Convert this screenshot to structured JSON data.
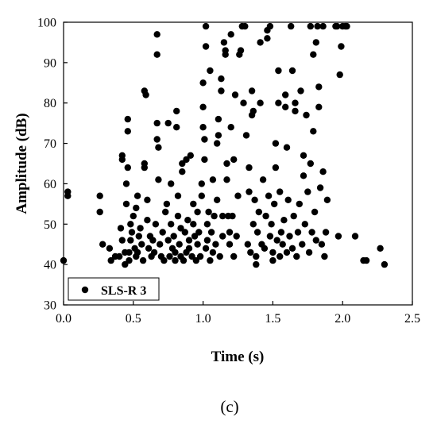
{
  "caption": "(c)",
  "chart_data": {
    "type": "scatter",
    "xlabel": "Time (s)",
    "ylabel": "Amplitude (dB)",
    "xlim": [
      0.0,
      2.5
    ],
    "ylim": [
      30,
      100
    ],
    "xticks": [
      "0.0",
      "0.5",
      "1.0",
      "1.5",
      "2.0",
      "2.5"
    ],
    "yticks": [
      "30",
      "40",
      "50",
      "60",
      "70",
      "80",
      "90",
      "100"
    ],
    "grid": false,
    "legend_position": "bottom-left",
    "marker_color": "#000000",
    "series": [
      {
        "name": "SLS-R 3",
        "points": [
          [
            0.0,
            41
          ],
          [
            0.03,
            57
          ],
          [
            0.03,
            58
          ],
          [
            0.26,
            57
          ],
          [
            0.26,
            53
          ],
          [
            0.28,
            45
          ],
          [
            0.33,
            44
          ],
          [
            0.34,
            41
          ],
          [
            0.37,
            42
          ],
          [
            0.4,
            42
          ],
          [
            0.41,
            49
          ],
          [
            0.42,
            46
          ],
          [
            0.42,
            67
          ],
          [
            0.42,
            66
          ],
          [
            0.44,
            43
          ],
          [
            0.44,
            40
          ],
          [
            0.45,
            55
          ],
          [
            0.45,
            60
          ],
          [
            0.46,
            76
          ],
          [
            0.46,
            73
          ],
          [
            0.46,
            64
          ],
          [
            0.47,
            43
          ],
          [
            0.47,
            41
          ],
          [
            0.48,
            50
          ],
          [
            0.48,
            46
          ],
          [
            0.49,
            48
          ],
          [
            0.5,
            52
          ],
          [
            0.51,
            44
          ],
          [
            0.52,
            42
          ],
          [
            0.52,
            54
          ],
          [
            0.53,
            57
          ],
          [
            0.53,
            43
          ],
          [
            0.54,
            47
          ],
          [
            0.55,
            49
          ],
          [
            0.56,
            45
          ],
          [
            0.57,
            41
          ],
          [
            0.58,
            64
          ],
          [
            0.58,
            65
          ],
          [
            0.58,
            83
          ],
          [
            0.59,
            82
          ],
          [
            0.6,
            51
          ],
          [
            0.6,
            56
          ],
          [
            0.61,
            44
          ],
          [
            0.62,
            47
          ],
          [
            0.63,
            42
          ],
          [
            0.64,
            46
          ],
          [
            0.65,
            43
          ],
          [
            0.66,
            50
          ],
          [
            0.67,
            97
          ],
          [
            0.67,
            92
          ],
          [
            0.67,
            75
          ],
          [
            0.67,
            71
          ],
          [
            0.68,
            69
          ],
          [
            0.68,
            61
          ],
          [
            0.69,
            45
          ],
          [
            0.7,
            42
          ],
          [
            0.71,
            48
          ],
          [
            0.72,
            41
          ],
          [
            0.73,
            53
          ],
          [
            0.74,
            55
          ],
          [
            0.75,
            75
          ],
          [
            0.75,
            46
          ],
          [
            0.76,
            42
          ],
          [
            0.77,
            50
          ],
          [
            0.77,
            60
          ],
          [
            0.78,
            44
          ],
          [
            0.79,
            47
          ],
          [
            0.8,
            43
          ],
          [
            0.8,
            41
          ],
          [
            0.81,
            78
          ],
          [
            0.81,
            74
          ],
          [
            0.82,
            52
          ],
          [
            0.82,
            57
          ],
          [
            0.83,
            45
          ],
          [
            0.84,
            49
          ],
          [
            0.84,
            42
          ],
          [
            0.85,
            65
          ],
          [
            0.85,
            63
          ],
          [
            0.86,
            41
          ],
          [
            0.87,
            48
          ],
          [
            0.88,
            43
          ],
          [
            0.88,
            66
          ],
          [
            0.89,
            51
          ],
          [
            0.9,
            44
          ],
          [
            0.9,
            46
          ],
          [
            0.91,
            67
          ],
          [
            0.92,
            42
          ],
          [
            0.93,
            50
          ],
          [
            0.93,
            55
          ],
          [
            0.94,
            47
          ],
          [
            0.95,
            41
          ],
          [
            0.96,
            53
          ],
          [
            0.96,
            45
          ],
          [
            0.97,
            48
          ],
          [
            0.98,
            42
          ],
          [
            0.99,
            57
          ],
          [
            0.99,
            60
          ],
          [
            1.0,
            85
          ],
          [
            1.0,
            79
          ],
          [
            1.0,
            74
          ],
          [
            1.01,
            66
          ],
          [
            1.01,
            71
          ],
          [
            1.02,
            99
          ],
          [
            1.02,
            94
          ],
          [
            1.02,
            44
          ],
          [
            1.03,
            50
          ],
          [
            1.03,
            46
          ],
          [
            1.04,
            53
          ],
          [
            1.05,
            41
          ],
          [
            1.05,
            88
          ],
          [
            1.06,
            48
          ],
          [
            1.07,
            43
          ],
          [
            1.07,
            61
          ],
          [
            1.08,
            52
          ],
          [
            1.09,
            45
          ],
          [
            1.1,
            56
          ],
          [
            1.1,
            70
          ],
          [
            1.11,
            72
          ],
          [
            1.11,
            76
          ],
          [
            1.12,
            42
          ],
          [
            1.13,
            86
          ],
          [
            1.13,
            83
          ],
          [
            1.14,
            47
          ],
          [
            1.14,
            52
          ],
          [
            1.15,
            95
          ],
          [
            1.16,
            93
          ],
          [
            1.16,
            92
          ],
          [
            1.17,
            65
          ],
          [
            1.17,
            61
          ],
          [
            1.18,
            52
          ],
          [
            1.19,
            48
          ],
          [
            1.19,
            45
          ],
          [
            1.2,
            97
          ],
          [
            1.2,
            74
          ],
          [
            1.21,
            52
          ],
          [
            1.22,
            42
          ],
          [
            1.22,
            66
          ],
          [
            1.23,
            82
          ],
          [
            1.24,
            47
          ],
          [
            1.25,
            57
          ],
          [
            1.26,
            92
          ],
          [
            1.27,
            93
          ],
          [
            1.28,
            99
          ],
          [
            1.29,
            80
          ],
          [
            1.3,
            99
          ],
          [
            1.31,
            72
          ],
          [
            1.32,
            45
          ],
          [
            1.33,
            64
          ],
          [
            1.33,
            58
          ],
          [
            1.34,
            43
          ],
          [
            1.35,
            77
          ],
          [
            1.35,
            83
          ],
          [
            1.36,
            78
          ],
          [
            1.36,
            50
          ],
          [
            1.37,
            56
          ],
          [
            1.38,
            42
          ],
          [
            1.38,
            40
          ],
          [
            1.39,
            48
          ],
          [
            1.4,
            53
          ],
          [
            1.41,
            95
          ],
          [
            1.41,
            80
          ],
          [
            1.42,
            45
          ],
          [
            1.43,
            61
          ],
          [
            1.44,
            44
          ],
          [
            1.45,
            52
          ],
          [
            1.46,
            98
          ],
          [
            1.46,
            96
          ],
          [
            1.47,
            57
          ],
          [
            1.48,
            99
          ],
          [
            1.48,
            47
          ],
          [
            1.49,
            50
          ],
          [
            1.5,
            43
          ],
          [
            1.5,
            41
          ],
          [
            1.51,
            55
          ],
          [
            1.52,
            70
          ],
          [
            1.52,
            64
          ],
          [
            1.53,
            46
          ],
          [
            1.54,
            88
          ],
          [
            1.54,
            80
          ],
          [
            1.55,
            58
          ],
          [
            1.55,
            42
          ],
          [
            1.56,
            48
          ],
          [
            1.57,
            45
          ],
          [
            1.58,
            51
          ],
          [
            1.59,
            79
          ],
          [
            1.59,
            82
          ],
          [
            1.6,
            69
          ],
          [
            1.6,
            43
          ],
          [
            1.61,
            56
          ],
          [
            1.62,
            47
          ],
          [
            1.63,
            99
          ],
          [
            1.64,
            88
          ],
          [
            1.64,
            44
          ],
          [
            1.65,
            52
          ],
          [
            1.66,
            78
          ],
          [
            1.66,
            80
          ],
          [
            1.67,
            42
          ],
          [
            1.68,
            48
          ],
          [
            1.69,
            55
          ],
          [
            1.7,
            83
          ],
          [
            1.71,
            45
          ],
          [
            1.72,
            67
          ],
          [
            1.72,
            62
          ],
          [
            1.73,
            50
          ],
          [
            1.74,
            77
          ],
          [
            1.75,
            58
          ],
          [
            1.76,
            43
          ],
          [
            1.77,
            65
          ],
          [
            1.77,
            99
          ],
          [
            1.78,
            48
          ],
          [
            1.79,
            92
          ],
          [
            1.79,
            73
          ],
          [
            1.8,
            53
          ],
          [
            1.81,
            95
          ],
          [
            1.81,
            46
          ],
          [
            1.82,
            99
          ],
          [
            1.83,
            84
          ],
          [
            1.83,
            79
          ],
          [
            1.84,
            59
          ],
          [
            1.85,
            45
          ],
          [
            1.86,
            99
          ],
          [
            1.86,
            63
          ],
          [
            1.87,
            42
          ],
          [
            1.88,
            48
          ],
          [
            1.89,
            56
          ],
          [
            1.95,
            99
          ],
          [
            1.96,
            99
          ],
          [
            1.97,
            47
          ],
          [
            1.98,
            87
          ],
          [
            1.99,
            94
          ],
          [
            2.0,
            99
          ],
          [
            2.02,
            99
          ],
          [
            2.03,
            99
          ],
          [
            2.09,
            47
          ],
          [
            2.15,
            41
          ],
          [
            2.17,
            41
          ],
          [
            2.27,
            44
          ],
          [
            2.3,
            40
          ]
        ]
      }
    ]
  }
}
